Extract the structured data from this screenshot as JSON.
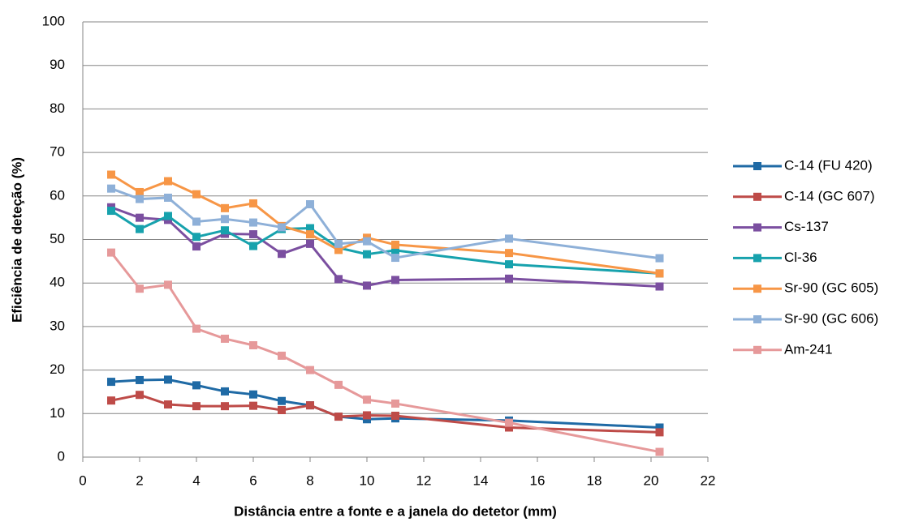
{
  "chart_data": {
    "type": "line",
    "x_label": "Distância entre a fonte e a janela do detetor (mm)",
    "y_label": "Eficiência de deteção  (%)",
    "x": [
      1,
      2,
      3,
      4,
      5,
      6,
      7,
      8,
      9,
      10,
      11,
      15,
      20.3
    ],
    "series": [
      {
        "name": "C-14 (FU 420)",
        "color": "#1f6aa5",
        "values": [
          17.3,
          17.7,
          17.8,
          16.5,
          15.1,
          14.4,
          12.9,
          11.9,
          9.3,
          8.7,
          8.9,
          8.4,
          6.8
        ]
      },
      {
        "name": "C-14 (GC 607)",
        "color": "#be4b48",
        "values": [
          13.0,
          14.3,
          12.1,
          11.7,
          11.7,
          11.8,
          10.8,
          11.9,
          9.3,
          9.6,
          9.5,
          6.8,
          5.7
        ]
      },
      {
        "name": "Cs-137",
        "color": "#7b4fa0",
        "values": [
          57.4,
          55.0,
          54.5,
          48.4,
          51.3,
          51.2,
          46.7,
          49.0,
          40.9,
          39.4,
          40.7,
          41.0,
          39.2
        ]
      },
      {
        "name": "Cl-36",
        "color": "#17a2ad",
        "values": [
          56.6,
          52.4,
          55.4,
          50.6,
          52.1,
          48.5,
          52.4,
          52.6,
          48.1,
          46.6,
          47.5,
          44.3,
          42.2
        ]
      },
      {
        "name": "Sr-90 (GC 605)",
        "color": "#f79646",
        "values": [
          64.9,
          60.9,
          63.4,
          60.4,
          57.2,
          58.3,
          53.1,
          51.2,
          47.6,
          50.4,
          48.8,
          46.9,
          42.2
        ]
      },
      {
        "name": "Sr-90 (GC 606)",
        "color": "#8eb0d8",
        "values": [
          61.7,
          59.3,
          59.6,
          54.1,
          54.7,
          53.9,
          52.8,
          58.1,
          49.0,
          49.6,
          45.8,
          50.2,
          45.7
        ]
      },
      {
        "name": "Am-241",
        "color": "#e6999a",
        "values": [
          47.0,
          38.7,
          39.6,
          29.5,
          27.2,
          25.7,
          23.3,
          20.0,
          16.6,
          13.2,
          12.3,
          7.9,
          1.2
        ]
      }
    ],
    "xlim": [
      0,
      22
    ],
    "xticks": [
      0,
      2,
      4,
      6,
      8,
      10,
      12,
      14,
      16,
      18,
      20,
      22
    ],
    "ylim": [
      0,
      100
    ],
    "yticks": [
      0,
      10,
      20,
      30,
      40,
      50,
      60,
      70,
      80,
      90,
      100
    ],
    "grid": true,
    "legend": "right"
  }
}
